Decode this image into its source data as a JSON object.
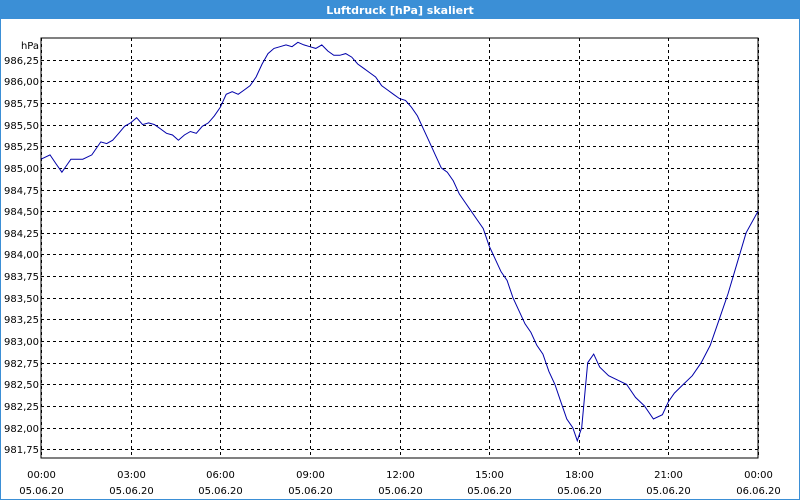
{
  "window": {
    "title": "Luftdruck [hPa] skaliert"
  },
  "colors": {
    "titlebar": "#3b8fd6",
    "line": "#0000aa",
    "grid": "#000000"
  },
  "chart_data": {
    "type": "line",
    "title": "Luftdruck [hPa] skaliert",
    "ylabel": "hPa",
    "xlabel": "",
    "grid": true,
    "grid_style": "dashed",
    "legend": "none",
    "ylim": [
      981.65,
      986.5
    ],
    "xlim": [
      0,
      24
    ],
    "yticks": [
      "981,75",
      "982,00",
      "982,25",
      "982,50",
      "982,75",
      "983,00",
      "983,25",
      "983,50",
      "983,75",
      "984,00",
      "984,25",
      "984,50",
      "984,75",
      "985,00",
      "985,25",
      "985,50",
      "985,75",
      "986,00",
      "986,25"
    ],
    "ytick_values": [
      981.75,
      982.0,
      982.25,
      982.5,
      982.75,
      983.0,
      983.25,
      983.5,
      983.75,
      984.0,
      984.25,
      984.5,
      984.75,
      985.0,
      985.25,
      985.5,
      985.75,
      986.0,
      986.25
    ],
    "xticks": [
      {
        "time": "00:00",
        "date": "05.06.20",
        "hour": 0
      },
      {
        "time": "03:00",
        "date": "05.06.20",
        "hour": 3
      },
      {
        "time": "06:00",
        "date": "05.06.20",
        "hour": 6
      },
      {
        "time": "09:00",
        "date": "05.06.20",
        "hour": 9
      },
      {
        "time": "12:00",
        "date": "05.06.20",
        "hour": 12
      },
      {
        "time": "15:00",
        "date": "05.06.20",
        "hour": 15
      },
      {
        "time": "18:00",
        "date": "05.06.20",
        "hour": 18
      },
      {
        "time": "21:00",
        "date": "05.06.20",
        "hour": 21
      },
      {
        "time": "00:00",
        "date": "06.06.20",
        "hour": 24
      }
    ],
    "series": [
      {
        "x": [
          0,
          0.3,
          0.5,
          0.7,
          0.8,
          1.0,
          1.2,
          1.4,
          1.7,
          2.0,
          2.2,
          2.4,
          2.6,
          2.8,
          3.0,
          3.2,
          3.4,
          3.6,
          3.8,
          4.0,
          4.2,
          4.4,
          4.6,
          4.8,
          5.0,
          5.2,
          5.4,
          5.6,
          5.8,
          6.0,
          6.2,
          6.4,
          6.6,
          6.8,
          7.0,
          7.2,
          7.4,
          7.6,
          7.8,
          8.0,
          8.2,
          8.4,
          8.6,
          8.8,
          9.0,
          9.2,
          9.4,
          9.6,
          9.8,
          10.0,
          10.2,
          10.4,
          10.6,
          10.8,
          11.0,
          11.2,
          11.4,
          11.6,
          11.8,
          12.0,
          12.2,
          12.4,
          12.6,
          12.8,
          13.0,
          13.2,
          13.4,
          13.6,
          13.8,
          14.0,
          14.2,
          14.4,
          14.6,
          14.8,
          15.0,
          15.2,
          15.4,
          15.6,
          15.8,
          16.0,
          16.2,
          16.4,
          16.6,
          16.8,
          17.0,
          17.2,
          17.4,
          17.6,
          17.8,
          17.95,
          18.1,
          18.3,
          18.5,
          18.7,
          19.0,
          19.3,
          19.6,
          19.9,
          20.2,
          20.5,
          20.8,
          21.0,
          21.2,
          21.5,
          21.8,
          22.1,
          22.4,
          22.7,
          23.0,
          23.3,
          23.6,
          24.0
        ],
        "values": [
          985.1,
          985.15,
          985.05,
          984.95,
          985.0,
          985.1,
          985.1,
          985.1,
          985.15,
          985.3,
          985.28,
          985.32,
          985.4,
          985.48,
          985.52,
          985.58,
          985.5,
          985.52,
          985.5,
          985.45,
          985.4,
          985.38,
          985.32,
          985.38,
          985.42,
          985.4,
          985.48,
          985.52,
          985.6,
          985.7,
          985.85,
          985.88,
          985.85,
          985.9,
          985.95,
          986.05,
          986.2,
          986.32,
          986.38,
          986.4,
          986.42,
          986.4,
          986.45,
          986.42,
          986.4,
          986.38,
          986.42,
          986.35,
          986.3,
          986.3,
          986.32,
          986.28,
          986.2,
          986.15,
          986.1,
          986.05,
          985.95,
          985.9,
          985.85,
          985.8,
          985.78,
          985.7,
          985.6,
          985.45,
          985.3,
          985.15,
          985.0,
          984.95,
          984.85,
          984.7,
          984.6,
          984.5,
          984.4,
          984.3,
          984.1,
          983.95,
          983.8,
          983.7,
          983.5,
          983.35,
          983.2,
          983.1,
          982.95,
          982.85,
          982.65,
          982.5,
          982.3,
          982.1,
          982.0,
          981.85,
          982.0,
          982.75,
          982.85,
          982.7,
          982.6,
          982.55,
          982.5,
          982.35,
          982.25,
          982.1,
          982.15,
          982.3,
          982.4,
          982.5,
          982.6,
          982.75,
          982.95,
          983.25,
          983.55,
          983.9,
          984.25,
          984.5
        ]
      }
    ]
  }
}
